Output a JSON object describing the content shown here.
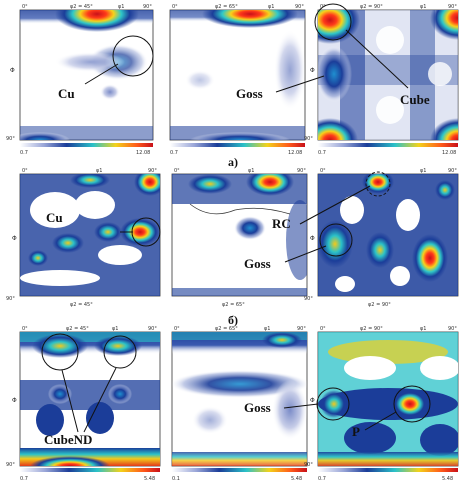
{
  "rows": [
    {
      "caption": "а)",
      "panels": [
        {
          "top_left": "0°",
          "top_center": "φ2 = 45°",
          "top_right": "φ1",
          "top_end": "90°",
          "phi": "Φ",
          "bottom_left": "90°",
          "bottom_center": "",
          "scale_min": "0.7",
          "scale_max": "12.08"
        },
        {
          "top_left": "0°",
          "top_center": "φ2 = 65°",
          "top_right": "φ1",
          "top_end": "90°",
          "phi": "Φ",
          "bottom_left": "90°",
          "bottom_center": "",
          "scale_min": "0.7",
          "scale_max": "12.08"
        },
        {
          "top_left": "0°",
          "top_center": "φ2 = 90°",
          "top_right": "φ1",
          "top_end": "90°",
          "phi": "Φ",
          "bottom_left": "90°",
          "bottom_center": "",
          "scale_min": "0.7",
          "scale_max": "12.08"
        }
      ]
    },
    {
      "caption": "б)",
      "panels": [
        {
          "top_left": "0°",
          "top_center": "",
          "top_right": "φ1",
          "top_end": "90°",
          "phi": "Φ",
          "bottom_left": "90°",
          "bottom_center": "φ2 = 45°",
          "scale_min": "",
          "scale_max": ""
        },
        {
          "top_left": "0°",
          "top_center": "",
          "top_right": "φ1",
          "top_end": "90°",
          "phi": "Φ",
          "bottom_left": "90°",
          "bottom_center": "φ2 = 65°",
          "scale_min": "",
          "scale_max": ""
        },
        {
          "top_left": "0°",
          "top_center": "",
          "top_right": "φ1",
          "top_end": "90°",
          "phi": "Φ",
          "bottom_left": "90°",
          "bottom_center": "φ2 = 90°",
          "scale_min": "",
          "scale_max": ""
        }
      ]
    },
    {
      "caption": "",
      "panels": [
        {
          "top_left": "0°",
          "top_center": "φ2 = 45°",
          "top_right": "φ1",
          "top_end": "90°",
          "phi": "Φ",
          "bottom_left": "90°",
          "bottom_center": "",
          "scale_min": "0.7",
          "scale_max": "5.48"
        },
        {
          "top_left": "0°",
          "top_center": "φ2 = 65°",
          "top_right": "φ1",
          "top_end": "90°",
          "phi": "Φ",
          "bottom_left": "90°",
          "bottom_center": "",
          "scale_min": "0.1",
          "scale_max": "5.48"
        },
        {
          "top_left": "0°",
          "top_center": "φ2 = 90°",
          "top_right": "φ1",
          "top_end": "90°",
          "phi": "Φ",
          "bottom_left": "90°",
          "bottom_center": "",
          "scale_min": "0.7",
          "scale_max": "5.48"
        }
      ]
    }
  ],
  "annotations": {
    "cu_a": "Cu",
    "goss_a": "Goss",
    "cube_a": "Cube",
    "cu_b": "Cu",
    "rc_b": "RC",
    "goss_b": "Goss",
    "cubend_c": "CubeND",
    "goss_c": "Goss",
    "p_c": "P"
  },
  "colors": {
    "low": "#ffffff",
    "mid_low": "#1c3f9a",
    "mid": "#19b9c9",
    "mid_high": "#f3d21c",
    "high": "#d21f1f"
  }
}
